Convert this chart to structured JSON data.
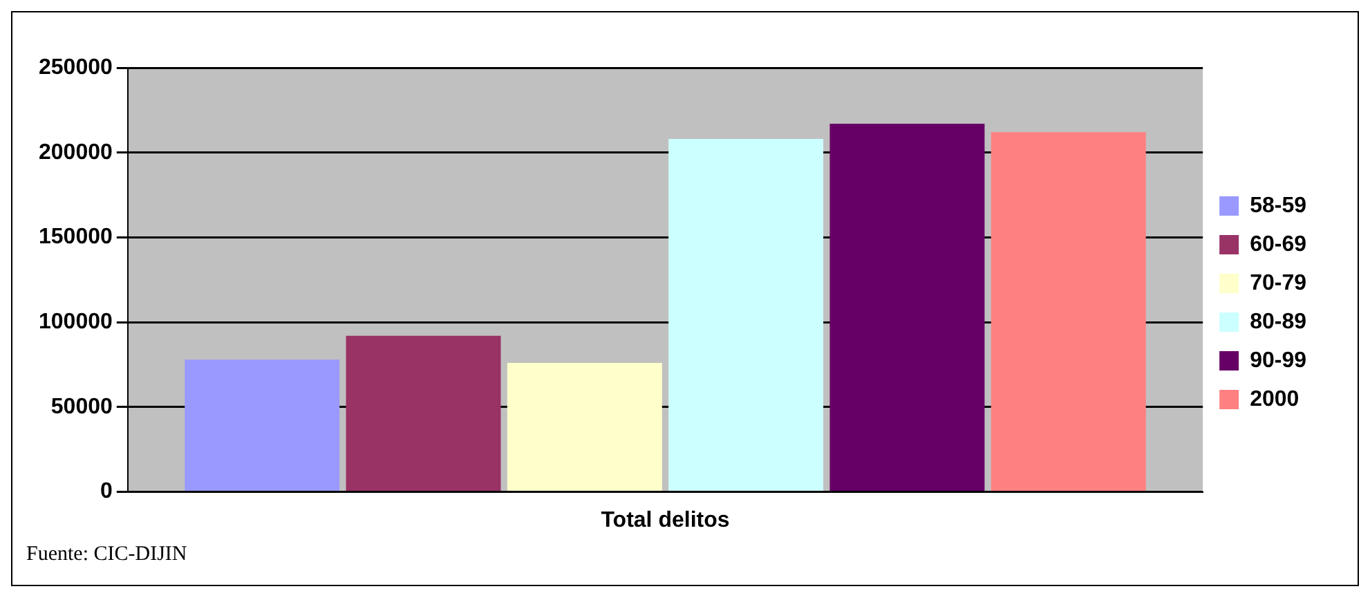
{
  "chart_data": {
    "type": "bar",
    "categories": [
      "Total delitos"
    ],
    "series": [
      {
        "name": "58-59",
        "color": "#9999ff",
        "values": [
          78000
        ]
      },
      {
        "name": "60-69",
        "color": "#993366",
        "values": [
          92000
        ]
      },
      {
        "name": "70-79",
        "color": "#ffffcc",
        "values": [
          76000
        ]
      },
      {
        "name": "80-89",
        "color": "#ccffff",
        "values": [
          208000
        ]
      },
      {
        "name": "90-99",
        "color": "#660066",
        "values": [
          217000
        ]
      },
      {
        "name": "2000",
        "color": "#ff8080",
        "values": [
          212000
        ]
      }
    ],
    "ylim": [
      0,
      250000
    ],
    "yticks": [
      0,
      50000,
      100000,
      150000,
      200000,
      250000
    ],
    "grid": "y",
    "legend": "right",
    "annotations": [
      "Fuente: CIC-DIJIN"
    ]
  }
}
